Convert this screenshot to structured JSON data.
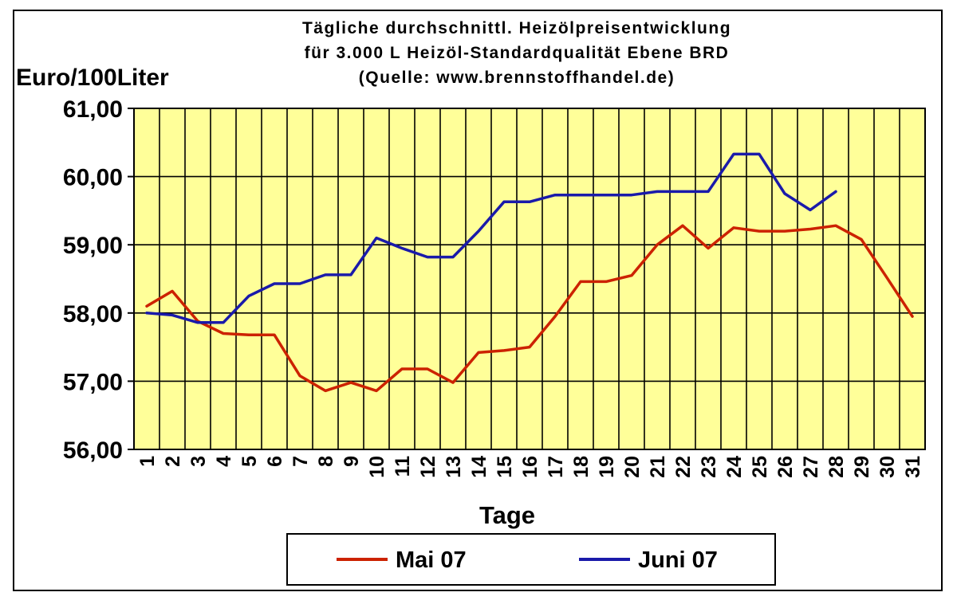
{
  "chart_data": {
    "type": "line",
    "title_lines": [
      "Tägliche durchschnittl. Heizölpreisentwicklung",
      "für 3.000 L Heizöl-Standardqualität Ebene BRD",
      "(Quelle: www.brennstoffhandel.de)"
    ],
    "ylabel": "Euro/100Liter",
    "xlabel": "Tage",
    "ylim": [
      56,
      61
    ],
    "yticks": [
      "56,00",
      "57,00",
      "58,00",
      "59,00",
      "60,00",
      "61,00"
    ],
    "x": [
      1,
      2,
      3,
      4,
      5,
      6,
      7,
      8,
      9,
      10,
      11,
      12,
      13,
      14,
      15,
      16,
      17,
      18,
      19,
      20,
      21,
      22,
      23,
      24,
      25,
      26,
      27,
      28,
      29,
      30,
      31
    ],
    "xticks": [
      "1",
      "2",
      "3",
      "4",
      "5",
      "6",
      "7",
      "8",
      "9",
      "10",
      "11",
      "12",
      "13",
      "14",
      "15",
      "16",
      "17",
      "18",
      "19",
      "20",
      "21",
      "22",
      "23",
      "24",
      "25",
      "26",
      "27",
      "28",
      "29",
      "30",
      "31"
    ],
    "grid": "vertical and horizontal",
    "legend_position": "bottom",
    "series": [
      {
        "name": "Mai 07",
        "color": "#cc2200",
        "values": [
          58.1,
          58.32,
          57.88,
          57.7,
          57.68,
          57.68,
          57.08,
          56.86,
          56.98,
          56.86,
          57.18,
          57.18,
          56.98,
          57.42,
          57.45,
          57.5,
          57.95,
          58.46,
          58.46,
          58.55,
          59.0,
          59.28,
          58.95,
          59.25,
          59.2,
          59.2,
          59.23,
          59.28,
          59.08,
          58.52,
          57.95
        ]
      },
      {
        "name": "Juni 07",
        "color": "#1a1aaa",
        "values": [
          58.0,
          57.97,
          57.86,
          57.86,
          58.25,
          58.43,
          58.43,
          58.56,
          58.56,
          59.1,
          58.95,
          58.82,
          58.82,
          59.2,
          59.63,
          59.63,
          59.73,
          59.73,
          59.73,
          59.73,
          59.78,
          59.78,
          59.78,
          60.33,
          60.33,
          59.75,
          59.51,
          59.78,
          null,
          null,
          null
        ]
      }
    ]
  }
}
